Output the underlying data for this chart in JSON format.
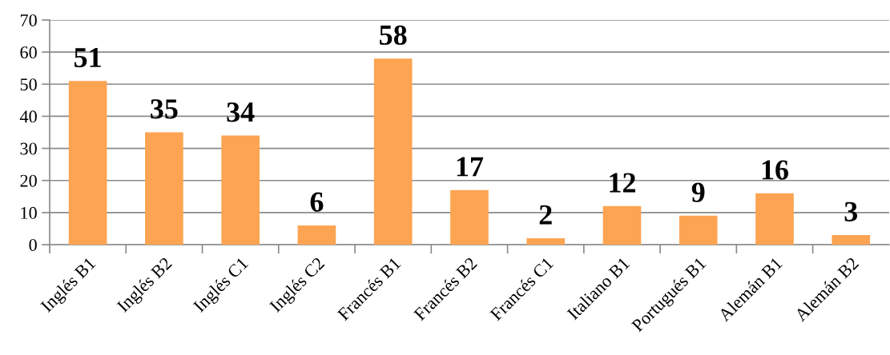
{
  "chart_data": {
    "type": "bar",
    "categories": [
      "Inglés B1",
      "Inglés B2",
      "Inglés C1",
      "Inglés C2",
      "Francés B1",
      "Francés B2",
      "Francés C1",
      "Italiano B1",
      "Portugués B1",
      "Alemán B1",
      "Alemán B2"
    ],
    "values": [
      51,
      35,
      34,
      6,
      58,
      17,
      2,
      12,
      9,
      16,
      3
    ],
    "color": "#fca452",
    "ylim": [
      0,
      70
    ],
    "yticks": [
      0,
      10,
      20,
      30,
      40,
      50,
      60,
      70
    ],
    "grid": "y",
    "data_labels": true
  }
}
